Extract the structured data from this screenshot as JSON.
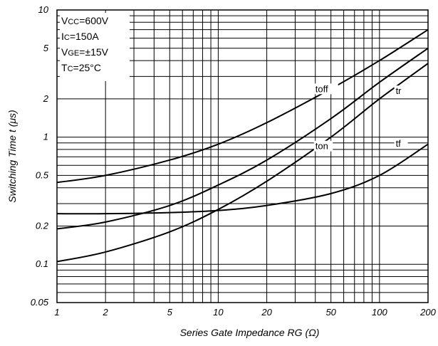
{
  "chart_data": {
    "type": "line",
    "xscale": "log",
    "yscale": "log",
    "xlim": [
      1,
      200
    ],
    "ylim": [
      0.05,
      10
    ],
    "x_ticks": [
      {
        "value": 1,
        "label": "1"
      },
      {
        "value": 2,
        "label": "2"
      },
      {
        "value": 5,
        "label": "5"
      },
      {
        "value": 10,
        "label": "10"
      },
      {
        "value": 20,
        "label": "20"
      },
      {
        "value": 50,
        "label": "50"
      },
      {
        "value": 100,
        "label": "100"
      },
      {
        "value": 200,
        "label": "200"
      }
    ],
    "y_ticks": [
      {
        "value": 0.05,
        "label": "0.05"
      },
      {
        "value": 0.1,
        "label": "0.1"
      },
      {
        "value": 0.2,
        "label": "0.2"
      },
      {
        "value": 0.5,
        "label": "0.5"
      },
      {
        "value": 1,
        "label": "1"
      },
      {
        "value": 2,
        "label": "2"
      },
      {
        "value": 5,
        "label": "5"
      },
      {
        "value": 10,
        "label": "10"
      }
    ],
    "xlabel": "Series Gate Impedance RG (Ω)",
    "ylabel": "Switching Time t (μs)",
    "grid": true,
    "conditions": [
      "Vcc=600V",
      "Ic=150A",
      "VGE=±15V",
      "Tc=25°C"
    ],
    "series": [
      {
        "name": "toff",
        "x": [
          1,
          2,
          5,
          10,
          20,
          50,
          100,
          200
        ],
        "y": [
          0.44,
          0.5,
          0.66,
          0.88,
          1.3,
          2.4,
          4.0,
          7.0
        ]
      },
      {
        "name": "ton",
        "x": [
          1,
          2,
          5,
          10,
          20,
          50,
          100,
          200
        ],
        "y": [
          0.19,
          0.215,
          0.29,
          0.42,
          0.66,
          1.4,
          2.7,
          5.0
        ]
      },
      {
        "name": "tr",
        "x": [
          1,
          2,
          5,
          10,
          20,
          50,
          100,
          200
        ],
        "y": [
          0.105,
          0.125,
          0.18,
          0.27,
          0.45,
          1.0,
          2.0,
          3.8
        ]
      },
      {
        "name": "tf",
        "x": [
          1,
          2,
          5,
          10,
          20,
          50,
          100,
          200
        ],
        "y": [
          0.25,
          0.25,
          0.255,
          0.265,
          0.29,
          0.36,
          0.5,
          0.88
        ]
      }
    ]
  }
}
